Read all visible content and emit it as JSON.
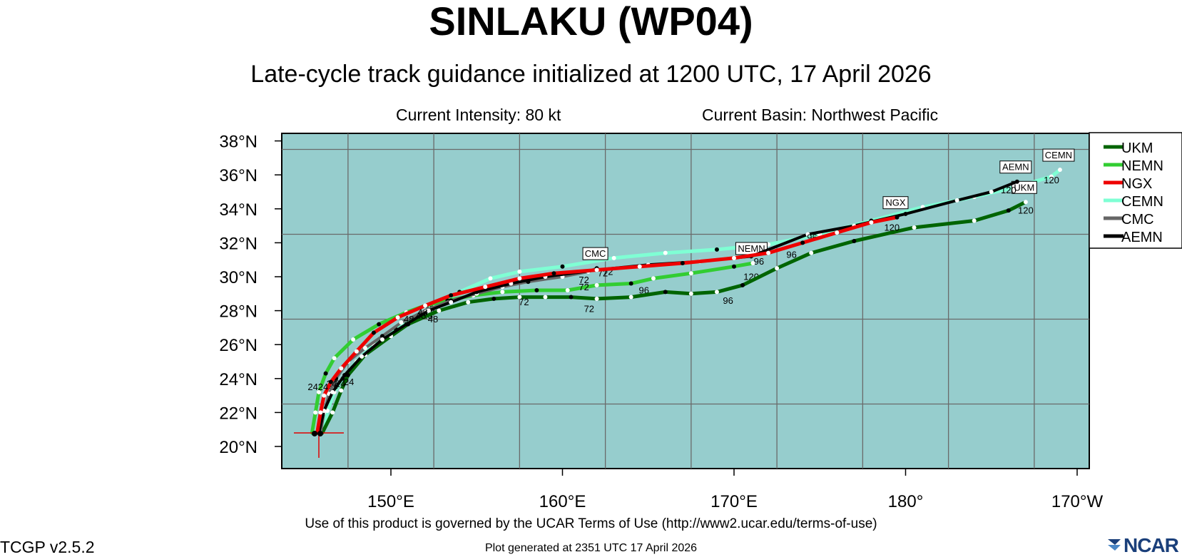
{
  "header": {
    "title": "SINLAKU (WP04)",
    "subtitle": "Late-cycle track guidance initialized at 1200 UTC, 17 April 2026",
    "intensity": "Current Intensity: 80 kt",
    "basin": "Current Basin: Northwest Pacific"
  },
  "footer": {
    "terms": "Use of this product is governed by the UCAR Terms of Use (http://www2.ucar.edu/terms-of-use)",
    "version": "TCGP v2.5.2",
    "generated": "Plot generated at 2351 UTC   17 April 2026",
    "logo": "NCAR"
  },
  "colors": {
    "ocean": "#96cdcd",
    "grid": "#6a6a6a",
    "UKM": "#006400",
    "NEMN": "#32cd32",
    "NGX": "#ee0000",
    "CEMN": "#7fffd4",
    "CMC": "#666666",
    "AEMN": "#000000",
    "storm_marker": "#e00000"
  },
  "map": {
    "lon_ticks": [
      "150°E",
      "160°E",
      "170°E",
      "180°",
      "170°W"
    ],
    "lat_ticks": [
      "38°N",
      "36°N",
      "34°N",
      "32°N",
      "30°N",
      "28°N",
      "26°N",
      "24°N",
      "22°N",
      "20°N"
    ],
    "storm_position": {
      "lat": 20.8,
      "lon": 145.8
    },
    "legend": [
      {
        "name": "UKM",
        "color": "#006400"
      },
      {
        "name": "NEMN",
        "color": "#32cd32"
      },
      {
        "name": "NGX",
        "color": "#ee0000"
      },
      {
        "name": "CEMN",
        "color": "#7fffd4"
      },
      {
        "name": "CMC",
        "color": "#666666"
      },
      {
        "name": "AEMN",
        "color": "#000000"
      }
    ],
    "tracks": [
      {
        "name": "UKM",
        "color": "#006400",
        "points": [
          [
            146.0,
            20.8
          ],
          [
            146.6,
            22.0
          ],
          [
            147.1,
            23.3
          ],
          [
            147.5,
            24.2
          ],
          [
            148.5,
            25.4
          ],
          [
            150.0,
            26.5
          ],
          [
            151.0,
            27.2
          ],
          [
            152.8,
            28.0
          ],
          [
            154.5,
            28.5
          ],
          [
            156.0,
            28.7
          ],
          [
            157.5,
            28.8
          ],
          [
            159.0,
            28.8
          ],
          [
            160.5,
            28.8
          ],
          [
            162.0,
            28.7
          ],
          [
            164.0,
            28.8
          ],
          [
            166.0,
            29.1
          ],
          [
            167.5,
            29.0
          ],
          [
            169.0,
            29.1
          ],
          [
            170.5,
            29.5
          ],
          [
            172.5,
            30.5
          ],
          [
            174.5,
            31.4
          ],
          [
            177.0,
            32.1
          ],
          [
            180.5,
            32.9
          ],
          [
            184.0,
            33.3
          ],
          [
            186.0,
            33.9
          ],
          [
            187.0,
            34.4
          ]
        ],
        "labels": [
          [
            "24",
            147.5,
            24.2
          ],
          [
            "48",
            152.4,
            27.9
          ],
          [
            "72",
            161.5,
            28.5
          ],
          [
            "96",
            169.6,
            29.0
          ],
          [
            "120",
            186.8,
            34.3
          ]
        ],
        "endLabel": "UKM"
      },
      {
        "name": "NEMN",
        "color": "#32cd32",
        "points": [
          [
            145.4,
            20.8
          ],
          [
            145.6,
            22.0
          ],
          [
            145.8,
            23.2
          ],
          [
            146.2,
            24.3
          ],
          [
            146.7,
            25.2
          ],
          [
            147.8,
            26.3
          ],
          [
            149.3,
            27.2
          ],
          [
            150.9,
            27.9
          ],
          [
            152.0,
            28.3
          ],
          [
            153.3,
            28.6
          ],
          [
            154.8,
            28.9
          ],
          [
            156.5,
            29.1
          ],
          [
            158.5,
            29.2
          ],
          [
            160.3,
            29.2
          ],
          [
            162.0,
            29.5
          ],
          [
            164.0,
            29.6
          ],
          [
            165.3,
            29.9
          ],
          [
            167.5,
            30.2
          ],
          [
            170.0,
            30.6
          ],
          [
            171.1,
            30.8
          ]
        ],
        "labels": [
          [
            "24",
            145.4,
            23.9
          ],
          [
            "48",
            152.1,
            28.1
          ],
          [
            "72",
            157.7,
            28.9
          ],
          [
            "96",
            164.7,
            29.6
          ],
          [
            "120",
            170.8,
            30.4
          ]
        ],
        "endLabel": "NEMN"
      },
      {
        "name": "NGX",
        "color": "#ee0000",
        "points": [
          [
            145.7,
            20.8
          ],
          [
            145.9,
            22.0
          ],
          [
            146.1,
            23.0
          ],
          [
            146.5,
            23.8
          ],
          [
            147.1,
            24.6
          ],
          [
            148.0,
            25.6
          ],
          [
            149.0,
            26.7
          ],
          [
            150.4,
            27.6
          ],
          [
            152.0,
            28.3
          ],
          [
            153.5,
            28.9
          ],
          [
            155.5,
            29.4
          ],
          [
            157.5,
            29.9
          ],
          [
            159.5,
            30.2
          ],
          [
            162.0,
            30.4
          ],
          [
            164.5,
            30.6
          ],
          [
            167.0,
            30.8
          ],
          [
            170.0,
            31.1
          ],
          [
            172.0,
            31.4
          ],
          [
            174.0,
            32.0
          ],
          [
            176.0,
            32.6
          ],
          [
            178.0,
            33.2
          ],
          [
            179.5,
            33.5
          ]
        ],
        "labels": [
          [
            "24",
            146.0,
            23.9
          ],
          [
            "48",
            151.8,
            28.3
          ],
          [
            "72",
            161.2,
            30.2
          ],
          [
            "96",
            173.3,
            31.7
          ],
          [
            "120",
            179.0,
            33.3
          ]
        ],
        "endLabel": "NGX"
      },
      {
        "name": "CEMN",
        "color": "#7fffd4",
        "points": [
          [
            146.0,
            20.8
          ],
          [
            146.3,
            22.1
          ],
          [
            146.7,
            23.2
          ],
          [
            147.2,
            24.0
          ],
          [
            148.0,
            25.0
          ],
          [
            149.0,
            26.0
          ],
          [
            150.3,
            26.9
          ],
          [
            151.5,
            27.6
          ],
          [
            152.5,
            28.2
          ],
          [
            154.0,
            29.1
          ],
          [
            155.8,
            29.9
          ],
          [
            157.5,
            30.3
          ],
          [
            160.0,
            30.6
          ],
          [
            163.0,
            31.1
          ],
          [
            166.0,
            31.4
          ],
          [
            169.0,
            31.6
          ],
          [
            172.0,
            31.9
          ],
          [
            175.0,
            32.5
          ],
          [
            178.0,
            33.3
          ],
          [
            181.0,
            34.1
          ],
          [
            184.0,
            34.7
          ],
          [
            186.5,
            35.3
          ],
          [
            188.5,
            35.9
          ],
          [
            189.0,
            36.3
          ]
        ],
        "labels": [
          [
            "24",
            146.6,
            24.0
          ],
          [
            "48",
            152.2,
            28.5
          ],
          [
            "72",
            162.6,
            30.7
          ],
          [
            "96",
            171.4,
            31.3
          ],
          [
            "120",
            188.3,
            36.1
          ]
        ],
        "endLabel": "CEMN"
      },
      {
        "name": "CMC",
        "color": "#666666",
        "points": [
          [
            145.9,
            20.8
          ],
          [
            146.1,
            22.0
          ],
          [
            146.4,
            23.1
          ],
          [
            146.8,
            24.0
          ],
          [
            147.5,
            25.0
          ],
          [
            148.5,
            25.8
          ],
          [
            149.5,
            26.5
          ],
          [
            150.6,
            27.3
          ],
          [
            152.0,
            28.0
          ],
          [
            153.5,
            28.6
          ],
          [
            155.0,
            29.0
          ],
          [
            156.5,
            29.4
          ],
          [
            158.0,
            29.7
          ],
          [
            160.0,
            30.0
          ],
          [
            161.5,
            30.3
          ],
          [
            162.0,
            30.5
          ]
        ],
        "labels": [
          [
            "24",
            147.0,
            24.1
          ],
          [
            "48",
            151.7,
            28.1
          ],
          [
            "72",
            161.2,
            29.8
          ]
        ],
        "endLabel": "CMC"
      },
      {
        "name": "AEMN",
        "color": "#000000",
        "points": [
          [
            145.8,
            20.8
          ],
          [
            146.1,
            22.1
          ],
          [
            146.6,
            23.2
          ],
          [
            147.3,
            24.2
          ],
          [
            148.3,
            25.3
          ],
          [
            149.5,
            26.3
          ],
          [
            150.9,
            27.2
          ],
          [
            152.2,
            28.0
          ],
          [
            153.5,
            28.5
          ],
          [
            155.0,
            29.1
          ],
          [
            157.0,
            29.6
          ],
          [
            159.0,
            30.0
          ],
          [
            162.0,
            30.4
          ],
          [
            165.0,
            30.7
          ],
          [
            168.0,
            30.9
          ],
          [
            171.0,
            31.2
          ],
          [
            174.3,
            32.5
          ],
          [
            177.0,
            33.0
          ],
          [
            180.0,
            33.7
          ],
          [
            183.0,
            34.5
          ],
          [
            185.0,
            35.0
          ],
          [
            186.5,
            35.6
          ]
        ],
        "labels": [
          [
            "24",
            146.5,
            24.1
          ],
          [
            "48",
            151.0,
            27.9
          ],
          [
            "72",
            162.3,
            30.6
          ],
          [
            "96",
            174.5,
            32.7
          ],
          [
            "120",
            185.8,
            35.5
          ]
        ],
        "endLabel": "AEMN"
      }
    ]
  }
}
